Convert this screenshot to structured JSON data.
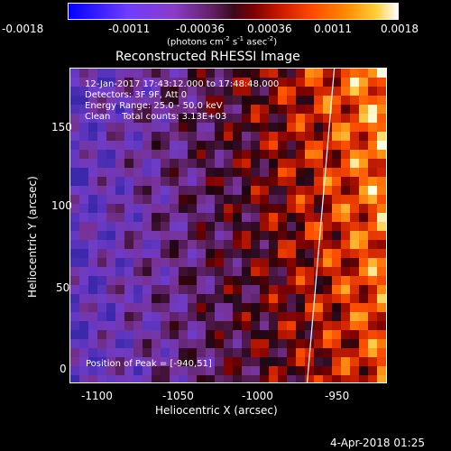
{
  "colorbar": {
    "ticks": [
      "-0.0018",
      "-0.0011",
      "-0.00036",
      "0.00036",
      "0.0011",
      "0.0018"
    ],
    "units_prefix": "(photons cm",
    "units_exp1": "-2",
    "units_mid": " s",
    "units_exp2": "-1",
    "units_mid2": " asec",
    "units_exp3": "-2",
    "units_suffix": ")"
  },
  "plot": {
    "title": "Reconstructed RHESSI Image",
    "info_lines": [
      "12-Jan-2017 17:43:12.000 to 17:48:48.000",
      "Detectors: 3F 9F, Att 0",
      "Energy Range: 25.0 - 50.0 keV",
      "Clean    Total counts: 3.13E+03"
    ],
    "peak_label": "Position of Peak = [-940,51]",
    "xlabel": "Heliocentric X (arcsec)",
    "ylabel": "Heliocentric Y (arcsec)",
    "x_ticks": [
      "-1100",
      "-1050",
      "-1000",
      "-950"
    ],
    "y_ticks": [
      "0",
      "50",
      "100",
      "150"
    ]
  },
  "footer": {
    "date": "4-Apr-2018 01:25"
  }
}
